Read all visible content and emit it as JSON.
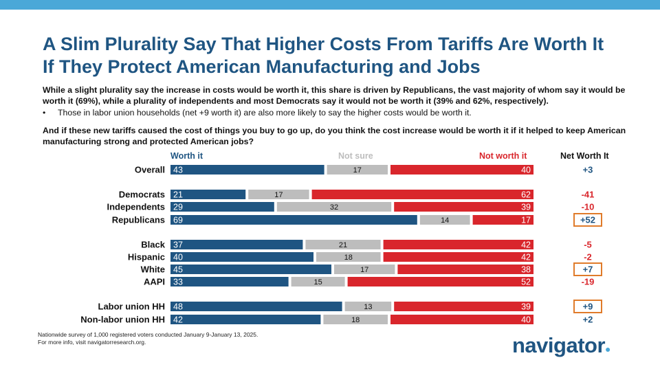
{
  "header": {
    "title_line1": "A Slim Plurality Say That Higher Costs From Tariffs Are Worth It",
    "title_line2": "If They Protect American Manufacturing and Jobs",
    "subtitle": "While a slight plurality say the increase in costs would be worth it, this share is driven by Republicans, the vast majority of whom say it would be worth it (69%), while a plurality of independents and most Democrats say it would not be worth it (39% and 62%, respectively).",
    "bullet": "Those in labor union households (net +9 worth it) are also more likely to say the higher costs would be worth it.",
    "question": "And if these new tariffs caused the cost of things you buy to go up, do you think the cost increase would be worth it if it helped to keep American manufacturing strong and protected American jobs?"
  },
  "legend": {
    "worth": "Worth it",
    "not_sure": "Not sure",
    "not_worth": "Not worth it",
    "net": "Net Worth It"
  },
  "colors": {
    "worth": "#1f5582",
    "not_sure": "#bdbdbd",
    "not_worth": "#d9262c",
    "net_positive": "#1f5582",
    "net_negative": "#d9262c",
    "highlight_box": "#e07b2a",
    "top_bar": "#4aa8d8"
  },
  "chart_data": {
    "type": "bar",
    "orientation": "horizontal",
    "stacked": true,
    "series_names": [
      "Worth it",
      "Not sure",
      "Not worth it"
    ],
    "rows": [
      {
        "label": "Overall",
        "worth": 43,
        "not_sure": 17,
        "not_worth": 40,
        "net": "+3",
        "highlight": false
      },
      {
        "label": "Democrats",
        "worth": 21,
        "not_sure": 17,
        "not_worth": 62,
        "net": "-41",
        "highlight": false
      },
      {
        "label": "Independents",
        "worth": 29,
        "not_sure": 32,
        "not_worth": 39,
        "net": "-10",
        "highlight": false
      },
      {
        "label": "Republicans",
        "worth": 69,
        "not_sure": 14,
        "not_worth": 17,
        "net": "+52",
        "highlight": true
      },
      {
        "label": "Black",
        "worth": 37,
        "not_sure": 21,
        "not_worth": 42,
        "net": "-5",
        "highlight": false
      },
      {
        "label": "Hispanic",
        "worth": 40,
        "not_sure": 18,
        "not_worth": 42,
        "net": "-2",
        "highlight": false
      },
      {
        "label": "White",
        "worth": 45,
        "not_sure": 17,
        "not_worth": 38,
        "net": "+7",
        "highlight": true
      },
      {
        "label": "AAPI",
        "worth": 33,
        "not_sure": 15,
        "not_worth": 52,
        "net": "-19",
        "highlight": false
      },
      {
        "label": "Labor union HH",
        "worth": 48,
        "not_sure": 13,
        "not_worth": 39,
        "net": "+9",
        "highlight": true
      },
      {
        "label": "Non-labor union HH",
        "worth": 42,
        "not_sure": 18,
        "not_worth": 40,
        "net": "+2",
        "highlight": false
      }
    ],
    "xlim": [
      0,
      100
    ]
  },
  "footer": {
    "line1": "Nationwide survey of 1,000 registered voters conducted January 9-January 13, 2025.",
    "line2": "For more info, visit navigatorresearch.org."
  },
  "logo": {
    "text": "navigator",
    "dot": "●"
  }
}
